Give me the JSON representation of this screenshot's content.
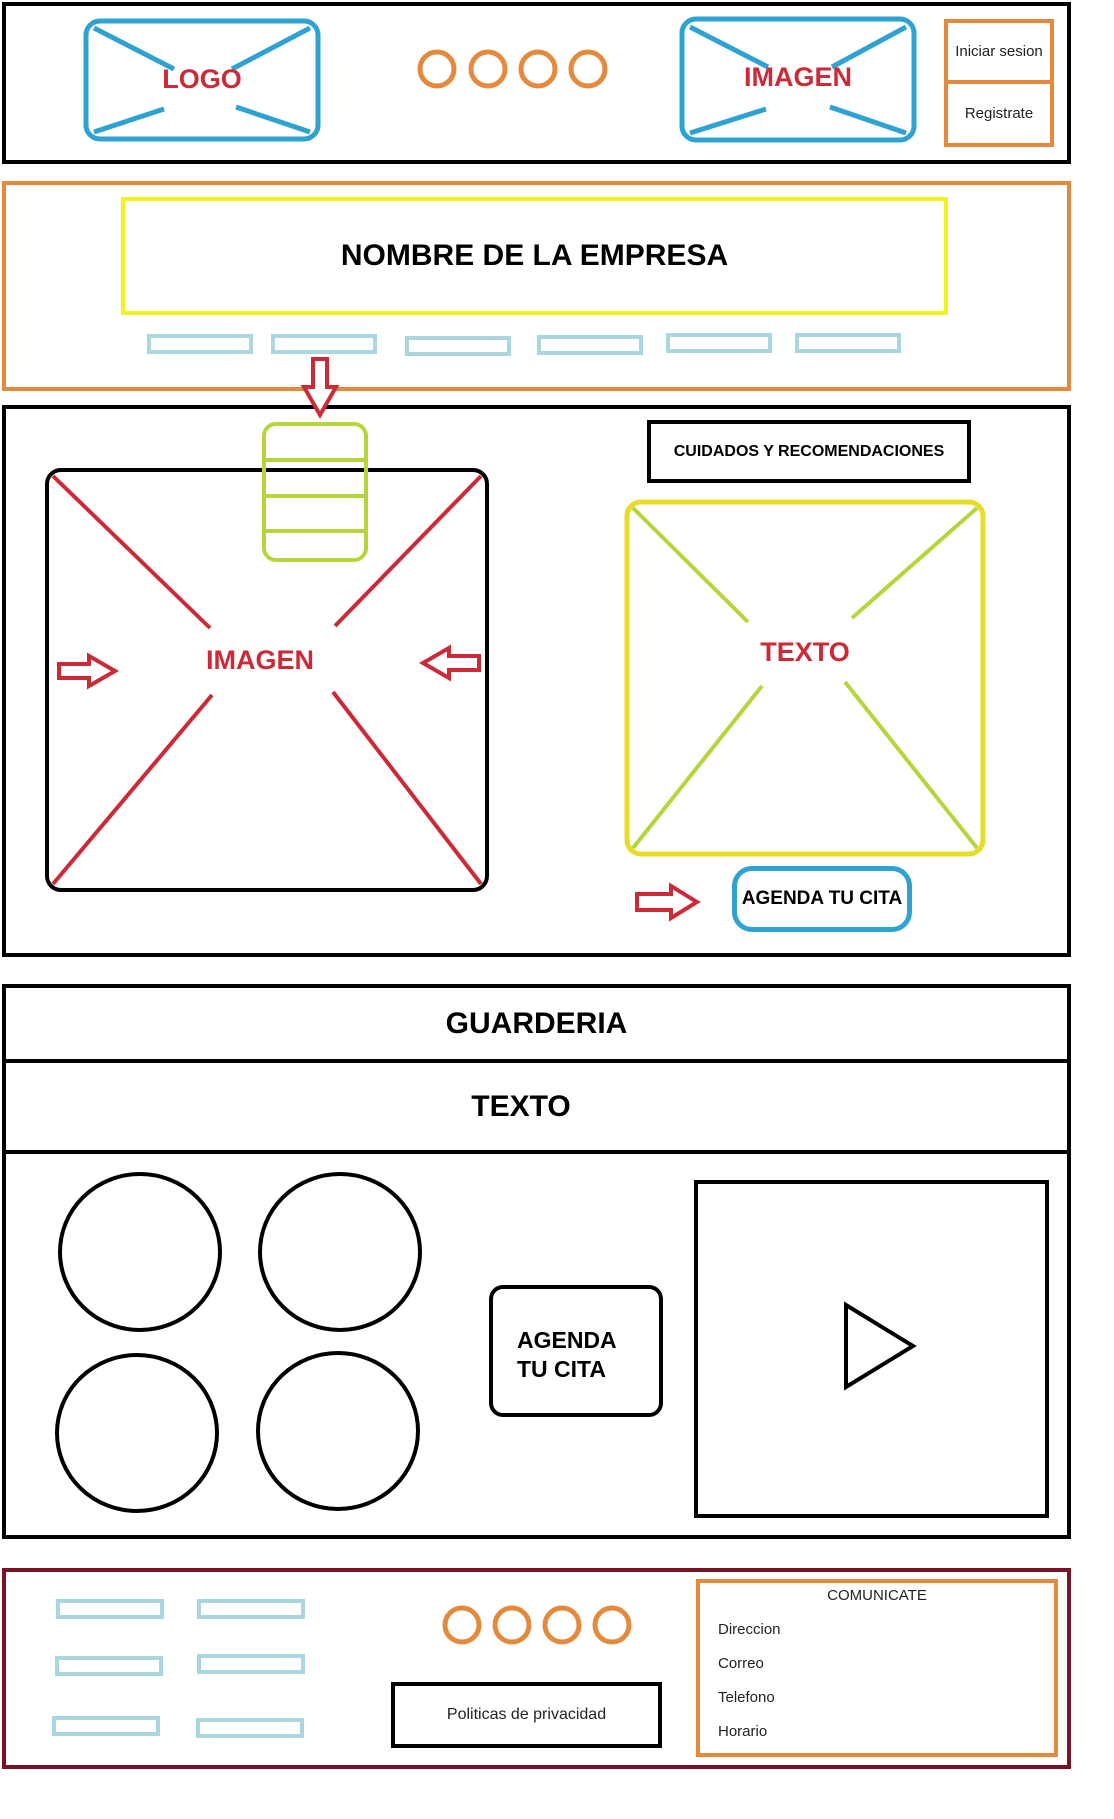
{
  "header": {
    "logo_label": "LOGO",
    "image_label": "IMAGEN",
    "login_label": "Iniciar sesion",
    "register_label": "Registrate"
  },
  "hero": {
    "company_name": "NOMBRE DE LA EMPRESA",
    "nav_item_count": 6
  },
  "main": {
    "image_label": "IMAGEN",
    "care_title": "CUIDADOS Y RECOMENDACIONES",
    "text_label": "TEXTO",
    "appointment_label": "AGENDA TU CITA"
  },
  "daycare": {
    "title": "GUARDERIA",
    "text_label": "TEXTO",
    "appointment_line1": "AGENDA",
    "appointment_line2": "TU CITA"
  },
  "footer": {
    "privacy_label": "Politicas de privacidad",
    "contact_title": "COMUNICATE",
    "contact_items": [
      "Direccion",
      "Correo",
      "Telefono",
      "Horario"
    ]
  },
  "colors": {
    "black": "#000000",
    "orange": "#e58a3c",
    "blue": "#2ea3d1",
    "light_blue": "#aad6e0",
    "yellow": "#f2f21e",
    "lime": "#b5d63a",
    "red": "#cc2a36",
    "dark_red": "#7a1226"
  }
}
